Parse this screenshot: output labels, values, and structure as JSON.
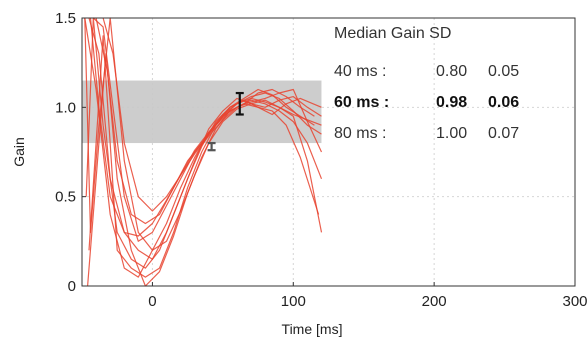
{
  "chart_data": {
    "type": "line",
    "title": "",
    "xlabel": "Time [ms]",
    "ylabel": "Gain",
    "xlim": [
      -50,
      300
    ],
    "ylim": [
      0,
      1.5
    ],
    "x_ticks": [
      0,
      100,
      200,
      300
    ],
    "y_ticks": [
      0,
      0.5,
      1.0,
      1.5
    ],
    "x_tick_labels": [
      "0",
      "100",
      "200",
      "300"
    ],
    "y_tick_labels": [
      "0",
      "0.5",
      "1.0",
      "1.5"
    ],
    "grid": true,
    "shaded_band": {
      "y_min": 0.8,
      "y_max": 1.15,
      "x_min": -50,
      "x_max": 120,
      "color": "#c8c8c8"
    },
    "error_bars": [
      {
        "x": 62,
        "y": 1.02,
        "low": 0.96,
        "high": 1.08,
        "color": "#111111"
      },
      {
        "x": 42,
        "y": 0.78,
        "low": 0.76,
        "high": 0.8,
        "color": "#555555"
      }
    ],
    "line_color": "#e8432f",
    "series": [
      {
        "x": [
          -45,
          -38,
          -30,
          -20,
          -10,
          0,
          10,
          20,
          30,
          40,
          50,
          60,
          70,
          80,
          90,
          100,
          110,
          120
        ],
        "y": [
          1.5,
          1.3,
          0.6,
          0.3,
          0.2,
          0.15,
          0.3,
          0.5,
          0.7,
          0.88,
          0.98,
          1.05,
          1.02,
          1.04,
          1.0,
          0.95,
          0.7,
          0.3
        ]
      },
      {
        "x": [
          -48,
          -40,
          -30,
          -20,
          -10,
          0,
          10,
          20,
          30,
          40,
          50,
          60,
          70,
          80,
          90,
          100,
          110,
          120
        ],
        "y": [
          1.5,
          1.1,
          0.4,
          0.1,
          0.05,
          0.2,
          0.35,
          0.55,
          0.72,
          0.86,
          0.96,
          1.02,
          1.06,
          1.08,
          1.05,
          0.98,
          0.9,
          0.85
        ]
      },
      {
        "x": [
          -42,
          -35,
          -28,
          -20,
          -10,
          0,
          10,
          20,
          30,
          40,
          50,
          60,
          70,
          80,
          90,
          100,
          110,
          120
        ],
        "y": [
          1.5,
          1.45,
          1.0,
          0.5,
          0.25,
          0.3,
          0.45,
          0.6,
          0.75,
          0.85,
          0.95,
          1.0,
          1.04,
          1.02,
          0.98,
          0.92,
          0.8,
          0.6
        ]
      },
      {
        "x": [
          -45,
          -40,
          -35,
          -25,
          -15,
          -5,
          5,
          15,
          25,
          35,
          45,
          55,
          65,
          75,
          85,
          95,
          105,
          115
        ],
        "y": [
          0.2,
          0.8,
          1.4,
          0.2,
          0.1,
          0.05,
          0.1,
          0.3,
          0.55,
          0.75,
          0.9,
          1.0,
          1.05,
          1.1,
          1.07,
          1.0,
          0.95,
          0.9
        ]
      },
      {
        "x": [
          -40,
          -32,
          -25,
          -15,
          -5,
          5,
          15,
          25,
          35,
          45,
          55,
          65,
          75,
          85,
          95,
          105,
          115
        ],
        "y": [
          1.5,
          1.2,
          0.7,
          0.4,
          0.35,
          0.4,
          0.55,
          0.7,
          0.8,
          0.9,
          0.98,
          1.02,
          1.08,
          1.1,
          1.06,
          1.0,
          0.95
        ]
      },
      {
        "x": [
          -47,
          -42,
          -35,
          -25,
          -15,
          -5,
          5,
          15,
          25,
          35,
          45,
          55,
          65,
          75,
          85,
          95,
          105,
          120
        ],
        "y": [
          0.5,
          1.5,
          0.9,
          0.3,
          0.15,
          0.1,
          0.2,
          0.4,
          0.6,
          0.78,
          0.92,
          1.0,
          1.04,
          1.0,
          0.96,
          1.02,
          1.05,
          1.0
        ]
      },
      {
        "x": [
          -44,
          -38,
          -30,
          -20,
          -10,
          0,
          10,
          20,
          30,
          40,
          50,
          60,
          70,
          80,
          90,
          100,
          110,
          120
        ],
        "y": [
          1.5,
          1.0,
          0.5,
          0.3,
          0.28,
          0.35,
          0.48,
          0.62,
          0.74,
          0.84,
          0.93,
          1.0,
          1.03,
          1.05,
          1.08,
          1.1,
          0.92,
          0.75
        ]
      },
      {
        "x": [
          -46,
          -40,
          -33,
          -25,
          -15,
          -5,
          5,
          15,
          25,
          35,
          45,
          55,
          65,
          75,
          85,
          95,
          105,
          118
        ],
        "y": [
          0.0,
          0.6,
          1.3,
          0.6,
          0.2,
          0.0,
          0.08,
          0.28,
          0.52,
          0.72,
          0.88,
          0.98,
          1.02,
          1.0,
          0.98,
          0.9,
          0.72,
          0.4
        ]
      },
      {
        "x": [
          -35,
          -28,
          -20,
          -10,
          0,
          10,
          20,
          30,
          40,
          50,
          60,
          70,
          80,
          90,
          100,
          110,
          120
        ],
        "y": [
          1.5,
          1.3,
          0.8,
          0.5,
          0.42,
          0.5,
          0.62,
          0.76,
          0.86,
          0.95,
          1.02,
          1.05,
          1.03,
          1.0,
          0.96,
          0.93,
          0.9
        ]
      },
      {
        "x": [
          -48,
          -44,
          -38,
          -30,
          -20,
          -10,
          0,
          10,
          20,
          30,
          40,
          50,
          60,
          70,
          80,
          90,
          100,
          110,
          120
        ],
        "y": [
          1.5,
          0.3,
          0.9,
          1.5,
          0.7,
          0.3,
          0.2,
          0.25,
          0.42,
          0.62,
          0.8,
          0.92,
          0.99,
          1.02,
          1.0,
          1.04,
          1.06,
          1.0,
          0.95
        ]
      }
    ]
  },
  "stats_table": {
    "header": "Median Gain  SD",
    "rows": [
      {
        "label": "40 ms :",
        "median": "0.80",
        "sd": "0.05",
        "bold": false
      },
      {
        "label": "60 ms :",
        "median": "0.98",
        "sd": "0.06",
        "bold": true
      },
      {
        "label": "80 ms :",
        "median": "1.00",
        "sd": "0.07",
        "bold": false
      }
    ]
  }
}
